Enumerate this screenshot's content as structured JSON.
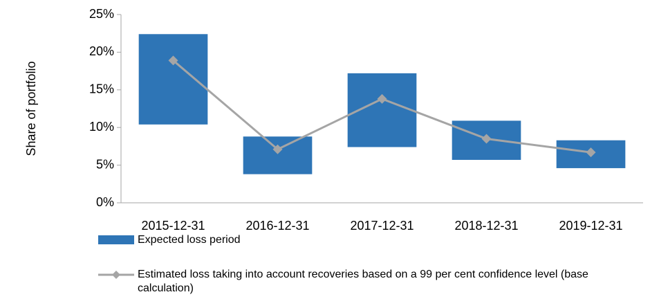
{
  "chart_data": {
    "type": "floating-bar-line",
    "y_label": "Share of portfolio",
    "categories": [
      "2015-12-31",
      "2016-12-31",
      "2017-12-31",
      "2018-12-31",
      "2019-12-31"
    ],
    "series": [
      {
        "name": "Expected loss period",
        "kind": "range-bar",
        "color": "#2e75b6",
        "low": [
          10.4,
          3.8,
          7.4,
          5.7,
          4.6
        ],
        "high": [
          22.4,
          8.8,
          17.2,
          10.9,
          8.3
        ]
      },
      {
        "name": "Estimated loss taking into account recoveries based on a 99 per cent confidence level (base calculation)",
        "kind": "line",
        "color": "#a5a5a5",
        "values": [
          18.9,
          7.1,
          13.8,
          8.5,
          6.7
        ]
      }
    ],
    "ylim": [
      0,
      25
    ],
    "yticks": [
      {
        "value": 0,
        "label": "0%"
      },
      {
        "value": 5,
        "label": "5%"
      },
      {
        "value": 10,
        "label": "10%"
      },
      {
        "value": 15,
        "label": "15%"
      },
      {
        "value": 20,
        "label": "20%"
      },
      {
        "value": 25,
        "label": "25%"
      }
    ]
  }
}
